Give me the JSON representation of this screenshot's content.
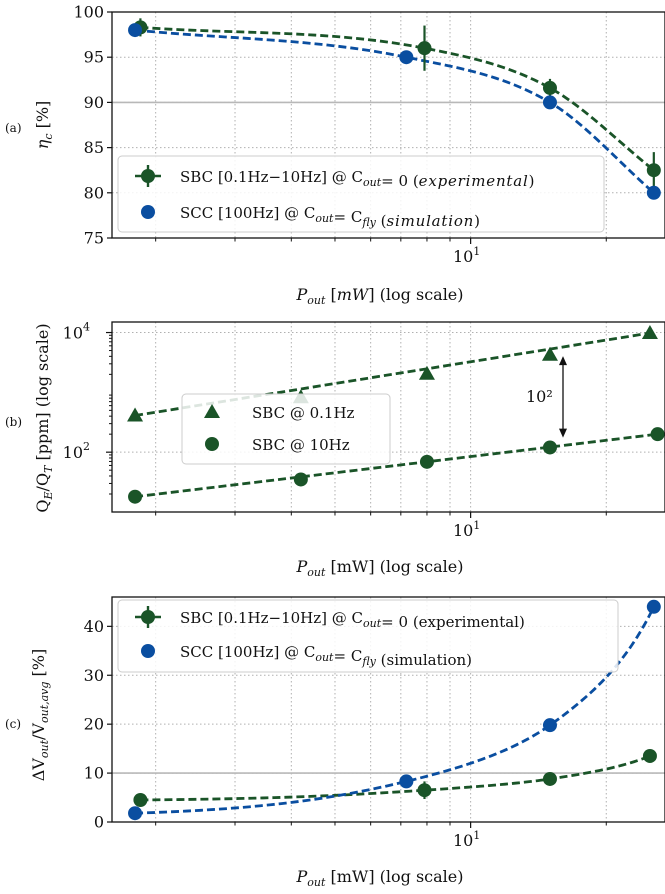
{
  "colors": {
    "sbc": "#1a5428",
    "scc": "#0a4ea0",
    "grid": "#b0b0b0",
    "refline": "#b8b8b8",
    "axis": "#111111"
  },
  "chart_data": [
    {
      "panel": "(a)",
      "type": "scatter",
      "xscale": "log",
      "xlim": [
        1.6,
        27
      ],
      "ylim": [
        75,
        100
      ],
      "xticklabels": [
        "10"
      ],
      "xtick_superscript": "1",
      "yticklabels": [
        "75",
        "80",
        "85",
        "90",
        "95",
        "100"
      ],
      "xlabel": "Pout [mW] (log scale)",
      "ylabel": "ηc [%]",
      "reference_line_y": 90,
      "grid": true,
      "legend_position": "lower-left",
      "series": [
        {
          "name": "SBC [0.1Hz−10Hz] @ Cout= 0 (experimental)",
          "marker": "circle-errorbar",
          "color": "#1a5428",
          "x": [
            1.85,
            7.9,
            15.0,
            25.5
          ],
          "y": [
            98.3,
            96.0,
            91.6,
            82.5
          ],
          "yerr": [
            1.0,
            2.5,
            1.0,
            2.0
          ]
        },
        {
          "name": "SCC [100Hz] @ Cout= Cfly (simulation)",
          "marker": "circle",
          "color": "#0a4ea0",
          "x": [
            1.8,
            7.2,
            15.0,
            25.5
          ],
          "y": [
            98.0,
            95.0,
            90.0,
            80.0
          ]
        }
      ]
    },
    {
      "panel": "(b)",
      "type": "scatter",
      "xscale": "log",
      "yscale": "log",
      "xlim": [
        1.6,
        27
      ],
      "ylim": [
        10,
        15000
      ],
      "xticklabels": [
        "10"
      ],
      "xtick_superscript": "1",
      "ytick_labels": [
        "10^2",
        "10^4"
      ],
      "xlabel": "Pout [mW] (log scale)",
      "ylabel": "QE/QT [ppm] (log scale)",
      "annotation": "10²",
      "grid": true,
      "legend_position": "center-left",
      "series": [
        {
          "name": "SBC @ 0.1Hz",
          "marker": "triangle",
          "color": "#1a5428",
          "x": [
            1.8,
            4.2,
            8.0,
            15.0,
            25.0
          ],
          "y": [
            410,
            830,
            2050,
            4250,
            9800
          ]
        },
        {
          "name": "SBC @ 10Hz",
          "marker": "circle",
          "color": "#1a5428",
          "x": [
            1.8,
            4.2,
            8.0,
            15.0,
            26.0
          ],
          "y": [
            18,
            35,
            69,
            120,
            200
          ]
        }
      ]
    },
    {
      "panel": "(c)",
      "type": "scatter",
      "xscale": "log",
      "xlim": [
        1.6,
        27
      ],
      "ylim": [
        0,
        46
      ],
      "xticklabels": [
        "10"
      ],
      "xtick_superscript": "1",
      "yticklabels": [
        "0",
        "10",
        "20",
        "30",
        "40"
      ],
      "xlabel": "Pout [mW] (log scale)",
      "ylabel": "ΔVout/Vout,avg [%]",
      "reference_line_y": 10,
      "grid": true,
      "legend_position": "top-left",
      "series": [
        {
          "name": "SBC [0.1Hz−10Hz] @ Cout= 0 (experimental)",
          "marker": "circle-errorbar",
          "color": "#1a5428",
          "x": [
            1.85,
            7.9,
            15.0,
            25.0
          ],
          "y": [
            4.5,
            6.5,
            8.8,
            13.5
          ],
          "yerr": [
            1.0,
            1.8,
            0.8,
            0.8
          ]
        },
        {
          "name": "SCC [100Hz] @ Cout= Cfly (simulation)",
          "marker": "circle",
          "color": "#0a4ea0",
          "x": [
            1.8,
            7.2,
            15.0,
            25.5
          ],
          "y": [
            1.8,
            8.3,
            19.8,
            44.0
          ]
        }
      ]
    }
  ]
}
